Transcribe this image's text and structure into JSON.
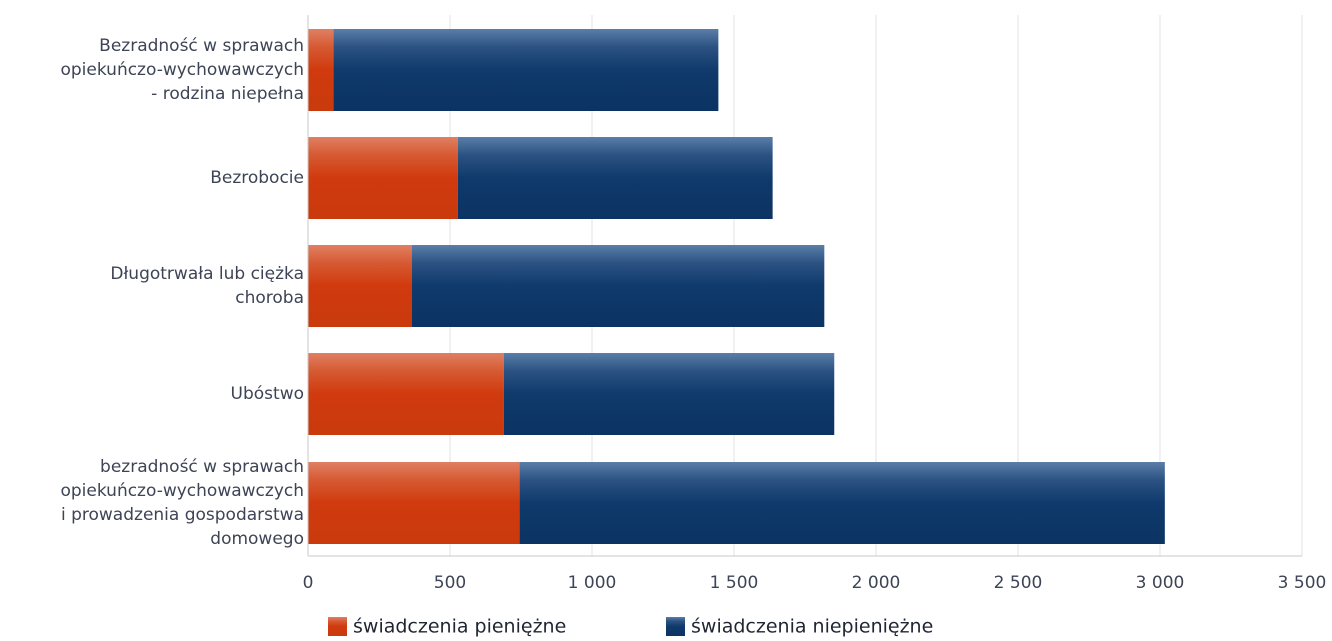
{
  "chart_data": {
    "type": "bar",
    "orientation": "horizontal",
    "stacked": true,
    "categories": [
      [
        "Bezradność w sprawach",
        "opiekuńczo-wychowawczych",
        "- rodzina niepełna"
      ],
      [
        "Bezrobocie"
      ],
      [
        "Długotrwała lub ciężka",
        "choroba"
      ],
      [
        "Ubóstwo"
      ],
      [
        "bezradność w sprawach",
        "opiekuńczo-wychowawczych",
        "i prowadzenia gospodarstwa",
        "domowego"
      ]
    ],
    "series": [
      {
        "name": "świadczenia pieniężne",
        "color": "#d03a0e",
        "values": [
          90,
          528,
          365,
          690,
          745
        ]
      },
      {
        "name": "świadczenia niepieniężne",
        "color": "#0f3a6b",
        "values": [
          1355,
          1108,
          1453,
          1163,
          2272
        ]
      }
    ],
    "xlim": [
      0,
      3500
    ],
    "xticks": [
      0,
      500,
      1000,
      1500,
      2000,
      2500,
      3000,
      3500
    ],
    "xtick_labels": [
      "0",
      "500",
      "1 000",
      "1 500",
      "2 000",
      "2 500",
      "3 000",
      "3 500"
    ],
    "grid": "vertical",
    "legend_position": "bottom"
  }
}
